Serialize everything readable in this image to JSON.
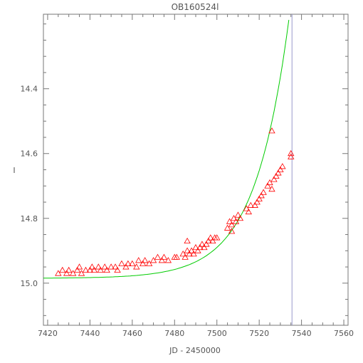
{
  "chart_data": {
    "type": "scatter",
    "title": "OB160524l",
    "xlabel": "JD - 2450000",
    "ylabel": "I",
    "xlim": [
      7418,
      7562
    ],
    "ylim": [
      15.13,
      14.17
    ],
    "y_inverted": true,
    "xticks": [
      7420,
      7440,
      7460,
      7480,
      7500,
      7520,
      7540,
      7560
    ],
    "xtick_labels": [
      "7420",
      "7440",
      "7460",
      "7480",
      "7500",
      "7520",
      "7540",
      "7560"
    ],
    "yticks": [
      14.4,
      14.6,
      14.8,
      15.0
    ],
    "ytick_labels": [
      "14.4",
      "14.6",
      "14.8",
      "15.0"
    ],
    "marker": "triangle-open",
    "point_color": "#ff0000",
    "fit_color": "#00cc00",
    "vline_color": "#9999cc",
    "vline_x": 7535.5,
    "grid": false,
    "series": [
      {
        "values": [
          [
            7425,
            14.97
          ],
          [
            7427,
            14.96
          ],
          [
            7429,
            14.97
          ],
          [
            7430,
            14.96
          ],
          [
            7432,
            14.97
          ],
          [
            7434,
            14.96
          ],
          [
            7435,
            14.95
          ],
          [
            7436,
            14.97
          ],
          [
            7438,
            14.96
          ],
          [
            7440,
            14.96
          ],
          [
            7441,
            14.95
          ],
          [
            7442,
            14.96
          ],
          [
            7444,
            14.95
          ],
          [
            7445,
            14.96
          ],
          [
            7447,
            14.95
          ],
          [
            7448,
            14.96
          ],
          [
            7450,
            14.95
          ],
          [
            7452,
            14.95
          ],
          [
            7453,
            14.96
          ],
          [
            7455,
            14.94
          ],
          [
            7457,
            14.95
          ],
          [
            7458,
            14.94
          ],
          [
            7460,
            14.94
          ],
          [
            7462,
            14.95
          ],
          [
            7463,
            14.93
          ],
          [
            7465,
            14.94
          ],
          [
            7466,
            14.93
          ],
          [
            7468,
            14.94
          ],
          [
            7470,
            14.93
          ],
          [
            7472,
            14.92
          ],
          [
            7474,
            14.93
          ],
          [
            7475,
            14.92
          ],
          [
            7477,
            14.93
          ],
          [
            7480,
            14.92
          ],
          [
            7481,
            14.92
          ],
          [
            7484,
            14.91
          ],
          [
            7485,
            14.92
          ],
          [
            7486,
            14.87
          ],
          [
            7486,
            14.9
          ],
          [
            7487,
            14.91
          ],
          [
            7488,
            14.9
          ],
          [
            7489,
            14.91
          ],
          [
            7490,
            14.89
          ],
          [
            7491,
            14.9
          ],
          [
            7492,
            14.89
          ],
          [
            7493,
            14.88
          ],
          [
            7494,
            14.89
          ],
          [
            7495,
            14.88
          ],
          [
            7496,
            14.87
          ],
          [
            7497,
            14.86
          ],
          [
            7498,
            14.87
          ],
          [
            7499,
            14.86
          ],
          [
            7500,
            14.86
          ],
          [
            7505,
            14.83
          ],
          [
            7506,
            14.81
          ],
          [
            7507,
            14.82
          ],
          [
            7507,
            14.84
          ],
          [
            7508,
            14.8
          ],
          [
            7509,
            14.81
          ],
          [
            7510,
            14.79
          ],
          [
            7511,
            14.8
          ],
          [
            7514,
            14.77
          ],
          [
            7515,
            14.78
          ],
          [
            7516,
            14.76
          ],
          [
            7518,
            14.76
          ],
          [
            7519,
            14.75
          ],
          [
            7520,
            14.74
          ],
          [
            7521,
            14.73
          ],
          [
            7522,
            14.72
          ],
          [
            7524,
            14.7
          ],
          [
            7525,
            14.69
          ],
          [
            7526,
            14.53
          ],
          [
            7526,
            14.71
          ],
          [
            7527,
            14.68
          ],
          [
            7528,
            14.67
          ],
          [
            7529,
            14.66
          ],
          [
            7530,
            14.65
          ],
          [
            7531,
            14.64
          ],
          [
            7535,
            14.6
          ],
          [
            7535,
            14.61
          ]
        ]
      }
    ]
  }
}
